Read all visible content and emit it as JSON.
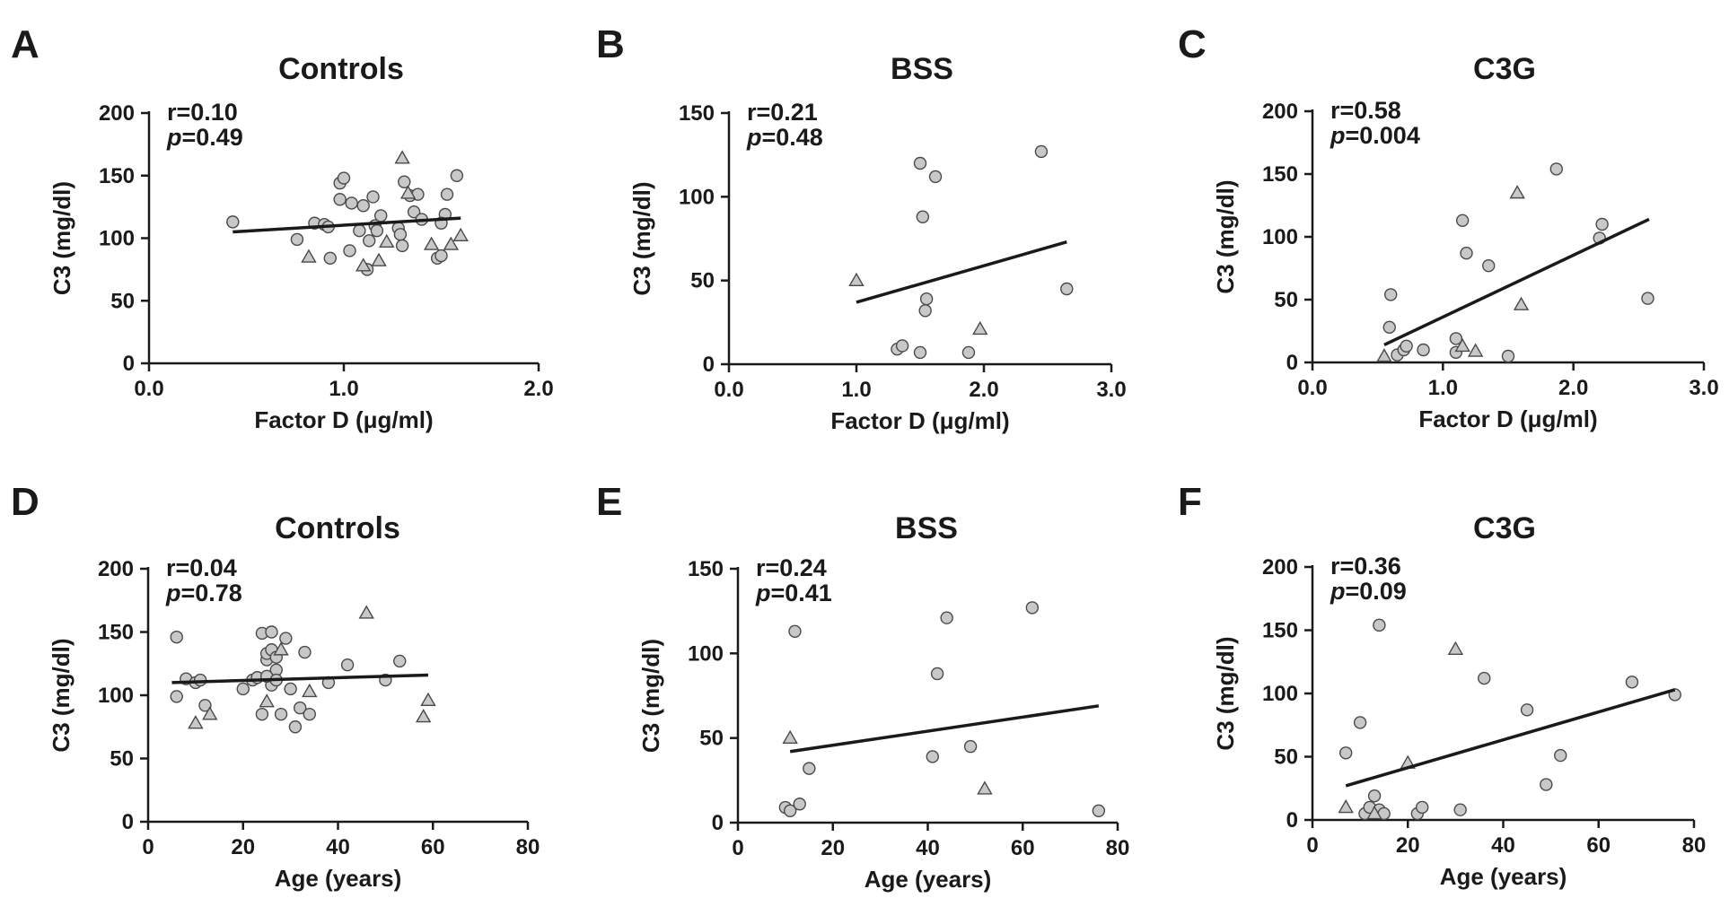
{
  "colors": {
    "marker_fill": "#c8c8c8",
    "marker_stroke": "#4a4a4a",
    "line": "#1a1a1a",
    "text": "#1a1a1a"
  },
  "chart_data": [
    {
      "panel": "A",
      "type": "scatter",
      "title": "Controls",
      "xlabel": "Factor D (μg/ml)",
      "ylabel": "C3 (mg/dl)",
      "xlim": [
        0,
        2
      ],
      "ylim": [
        0,
        200
      ],
      "xticks": [
        0,
        1,
        2
      ],
      "xtick_labels": [
        "0.0",
        "1.0",
        "2.0"
      ],
      "yticks": [
        0,
        50,
        100,
        150,
        200
      ],
      "ytick_labels": [
        "0",
        "50",
        "100",
        "150",
        "200"
      ],
      "r_label": "r=0.10",
      "p_prefix": "p",
      "p_value": "=0.49",
      "regression": {
        "x": [
          0.43,
          1.6
        ],
        "y": [
          105,
          116
        ]
      },
      "series": [
        {
          "name": "circles",
          "marker": "circle",
          "points": [
            [
              0.43,
              113
            ],
            [
              0.76,
              99
            ],
            [
              0.85,
              112
            ],
            [
              0.9,
              111
            ],
            [
              0.92,
              109
            ],
            [
              0.93,
              84
            ],
            [
              0.98,
              144
            ],
            [
              1.0,
              148
            ],
            [
              0.98,
              131
            ],
            [
              1.03,
              90
            ],
            [
              1.04,
              128
            ],
            [
              1.08,
              106
            ],
            [
              1.1,
              126
            ],
            [
              1.12,
              75
            ],
            [
              1.13,
              98
            ],
            [
              1.15,
              133
            ],
            [
              1.16,
              110
            ],
            [
              1.17,
              106
            ],
            [
              1.19,
              118
            ],
            [
              1.28,
              108
            ],
            [
              1.29,
              103
            ],
            [
              1.3,
              94
            ],
            [
              1.31,
              145
            ],
            [
              1.34,
              134
            ],
            [
              1.36,
              121
            ],
            [
              1.38,
              135
            ],
            [
              1.4,
              115
            ],
            [
              1.48,
              84
            ],
            [
              1.5,
              86
            ],
            [
              1.52,
              119
            ],
            [
              1.53,
              135
            ],
            [
              1.58,
              150
            ],
            [
              1.5,
              112
            ]
          ]
        },
        {
          "name": "triangles",
          "marker": "triangle",
          "points": [
            [
              0.82,
              85
            ],
            [
              1.1,
              78
            ],
            [
              1.18,
              82
            ],
            [
              1.22,
              97
            ],
            [
              1.3,
              164
            ],
            [
              1.33,
              136
            ],
            [
              1.45,
              95
            ],
            [
              1.55,
              95
            ],
            [
              1.6,
              102
            ]
          ]
        }
      ]
    },
    {
      "panel": "B",
      "type": "scatter",
      "title": "BSS",
      "xlabel": "Factor D (μg/ml)",
      "ylabel": "C3 (mg/dl)",
      "xlim": [
        0,
        3
      ],
      "ylim": [
        0,
        150
      ],
      "xticks": [
        0,
        1,
        2,
        3
      ],
      "xtick_labels": [
        "0.0",
        "1.0",
        "2.0",
        "3.0"
      ],
      "yticks": [
        0,
        50,
        100,
        150
      ],
      "ytick_labels": [
        "0",
        "50",
        "100",
        "150"
      ],
      "r_label": "r=0.21",
      "p_prefix": "p",
      "p_value": "=0.48",
      "regression": {
        "x": [
          1.0,
          2.65
        ],
        "y": [
          37,
          73
        ]
      },
      "series": [
        {
          "name": "circles",
          "marker": "circle",
          "points": [
            [
              1.32,
              9
            ],
            [
              1.36,
              11
            ],
            [
              1.5,
              120
            ],
            [
              1.52,
              88
            ],
            [
              1.55,
              39
            ],
            [
              1.54,
              32
            ],
            [
              1.5,
              7
            ],
            [
              1.62,
              112
            ],
            [
              1.88,
              7
            ],
            [
              2.45,
              127
            ],
            [
              2.65,
              45
            ]
          ]
        },
        {
          "name": "triangles",
          "marker": "triangle",
          "points": [
            [
              1.0,
              50
            ],
            [
              1.97,
              21
            ]
          ]
        }
      ]
    },
    {
      "panel": "C",
      "type": "scatter",
      "title": "C3G",
      "xlabel": "Factor D (μg/ml)",
      "ylabel": "C3 (mg/dl)",
      "xlim": [
        0,
        3
      ],
      "ylim": [
        0,
        200
      ],
      "xticks": [
        0,
        1,
        2,
        3
      ],
      "xtick_labels": [
        "0.0",
        "1.0",
        "2.0",
        "3.0"
      ],
      "yticks": [
        0,
        50,
        100,
        150,
        200
      ],
      "ytick_labels": [
        "0",
        "50",
        "100",
        "150",
        "200"
      ],
      "r_label": "r=0.58",
      "p_prefix": "p",
      "p_value": "=0.004",
      "regression": {
        "x": [
          0.55,
          2.58
        ],
        "y": [
          14,
          114
        ]
      },
      "series": [
        {
          "name": "circles",
          "marker": "circle",
          "points": [
            [
              0.6,
              54
            ],
            [
              0.59,
              28
            ],
            [
              0.65,
              6
            ],
            [
              0.7,
              10
            ],
            [
              0.72,
              13
            ],
            [
              0.85,
              10
            ],
            [
              1.1,
              19
            ],
            [
              1.1,
              8
            ],
            [
              1.15,
              113
            ],
            [
              1.18,
              87
            ],
            [
              1.35,
              77
            ],
            [
              1.5,
              5
            ],
            [
              1.87,
              154
            ],
            [
              2.2,
              99
            ],
            [
              2.22,
              110
            ],
            [
              2.57,
              51
            ]
          ]
        },
        {
          "name": "triangles",
          "marker": "triangle",
          "points": [
            [
              0.55,
              5
            ],
            [
              1.15,
              13
            ],
            [
              1.25,
              9
            ],
            [
              1.57,
              135
            ],
            [
              1.6,
              46
            ]
          ]
        }
      ]
    },
    {
      "panel": "D",
      "type": "scatter",
      "title": "Controls",
      "xlabel": "Age (years)",
      "ylabel": "C3 (mg/dl)",
      "xlim": [
        0,
        80
      ],
      "ylim": [
        0,
        200
      ],
      "xticks": [
        0,
        20,
        40,
        60,
        80
      ],
      "xtick_labels": [
        "0",
        "20",
        "40",
        "60",
        "80"
      ],
      "yticks": [
        0,
        50,
        100,
        150,
        200
      ],
      "ytick_labels": [
        "0",
        "50",
        "100",
        "150",
        "200"
      ],
      "r_label": "r=0.04",
      "p_prefix": "p",
      "p_value": "=0.78",
      "regression": {
        "x": [
          5,
          59
        ],
        "y": [
          110,
          116
        ]
      },
      "series": [
        {
          "name": "circles",
          "marker": "circle",
          "points": [
            [
              6,
              146
            ],
            [
              6,
              99
            ],
            [
              8,
              113
            ],
            [
              10,
              110
            ],
            [
              11,
              112
            ],
            [
              12,
              92
            ],
            [
              20,
              105
            ],
            [
              22,
              112
            ],
            [
              23,
              114
            ],
            [
              24,
              85
            ],
            [
              24,
              149
            ],
            [
              25,
              128
            ],
            [
              25,
              133
            ],
            [
              26,
              108
            ],
            [
              26,
              150
            ],
            [
              26,
              136
            ],
            [
              27,
              120
            ],
            [
              27,
              130
            ],
            [
              28,
              85
            ],
            [
              29,
              145
            ],
            [
              30,
              105
            ],
            [
              31,
              75
            ],
            [
              32,
              90
            ],
            [
              33,
              134
            ],
            [
              34,
              85
            ],
            [
              38,
              110
            ],
            [
              42,
              124
            ],
            [
              50,
              112
            ],
            [
              53,
              127
            ],
            [
              25,
              115
            ],
            [
              27,
              112
            ]
          ]
        },
        {
          "name": "triangles",
          "marker": "triangle",
          "points": [
            [
              10,
              78
            ],
            [
              13,
              85
            ],
            [
              25,
              95
            ],
            [
              28,
              136
            ],
            [
              34,
              103
            ],
            [
              46,
              165
            ],
            [
              58,
              83
            ],
            [
              59,
              96
            ]
          ]
        }
      ]
    },
    {
      "panel": "E",
      "type": "scatter",
      "title": "BSS",
      "xlabel": "Age (years)",
      "ylabel": "C3 (mg/dl)",
      "xlim": [
        0,
        80
      ],
      "ylim": [
        0,
        150
      ],
      "xticks": [
        0,
        20,
        40,
        60,
        80
      ],
      "xtick_labels": [
        "0",
        "20",
        "40",
        "60",
        "80"
      ],
      "yticks": [
        0,
        50,
        100,
        150
      ],
      "ytick_labels": [
        "0",
        "50",
        "100",
        "150"
      ],
      "r_label": "r=0.24",
      "p_prefix": "p",
      "p_value": "=0.41",
      "regression": {
        "x": [
          11,
          76
        ],
        "y": [
          42,
          69
        ]
      },
      "series": [
        {
          "name": "circles",
          "marker": "circle",
          "points": [
            [
              10,
              9
            ],
            [
              11,
              7
            ],
            [
              12,
              113
            ],
            [
              13,
              11
            ],
            [
              15,
              32
            ],
            [
              41,
              39
            ],
            [
              42,
              88
            ],
            [
              44,
              121
            ],
            [
              49,
              45
            ],
            [
              62,
              127
            ],
            [
              76,
              7
            ]
          ]
        },
        {
          "name": "triangles",
          "marker": "triangle",
          "points": [
            [
              11,
              50
            ],
            [
              52,
              20
            ]
          ]
        }
      ]
    },
    {
      "panel": "F",
      "type": "scatter",
      "title": "C3G",
      "xlabel": "Age (years)",
      "ylabel": "C3 (mg/dl)",
      "xlim": [
        0,
        80
      ],
      "ylim": [
        0,
        200
      ],
      "xticks": [
        0,
        20,
        40,
        60,
        80
      ],
      "xtick_labels": [
        "0",
        "20",
        "40",
        "60",
        "80"
      ],
      "yticks": [
        0,
        50,
        100,
        150,
        200
      ],
      "ytick_labels": [
        "0",
        "50",
        "100",
        "150",
        "200"
      ],
      "r_label": "r=0.36",
      "p_prefix": "p",
      "p_value": "=0.09",
      "regression": {
        "x": [
          7,
          76
        ],
        "y": [
          27,
          103
        ]
      },
      "series": [
        {
          "name": "circles",
          "marker": "circle",
          "points": [
            [
              7,
              53
            ],
            [
              10,
              77
            ],
            [
              11,
              5
            ],
            [
              12,
              10
            ],
            [
              13,
              19
            ],
            [
              14,
              154
            ],
            [
              14,
              8
            ],
            [
              15,
              5
            ],
            [
              22,
              5
            ],
            [
              23,
              10
            ],
            [
              31,
              8
            ],
            [
              36,
              112
            ],
            [
              45,
              87
            ],
            [
              49,
              28
            ],
            [
              52,
              51
            ],
            [
              67,
              109
            ],
            [
              76,
              99
            ]
          ]
        },
        {
          "name": "triangles",
          "marker": "triangle",
          "points": [
            [
              7,
              10
            ],
            [
              13,
              5
            ],
            [
              20,
              45
            ],
            [
              30,
              135
            ]
          ]
        }
      ]
    }
  ]
}
